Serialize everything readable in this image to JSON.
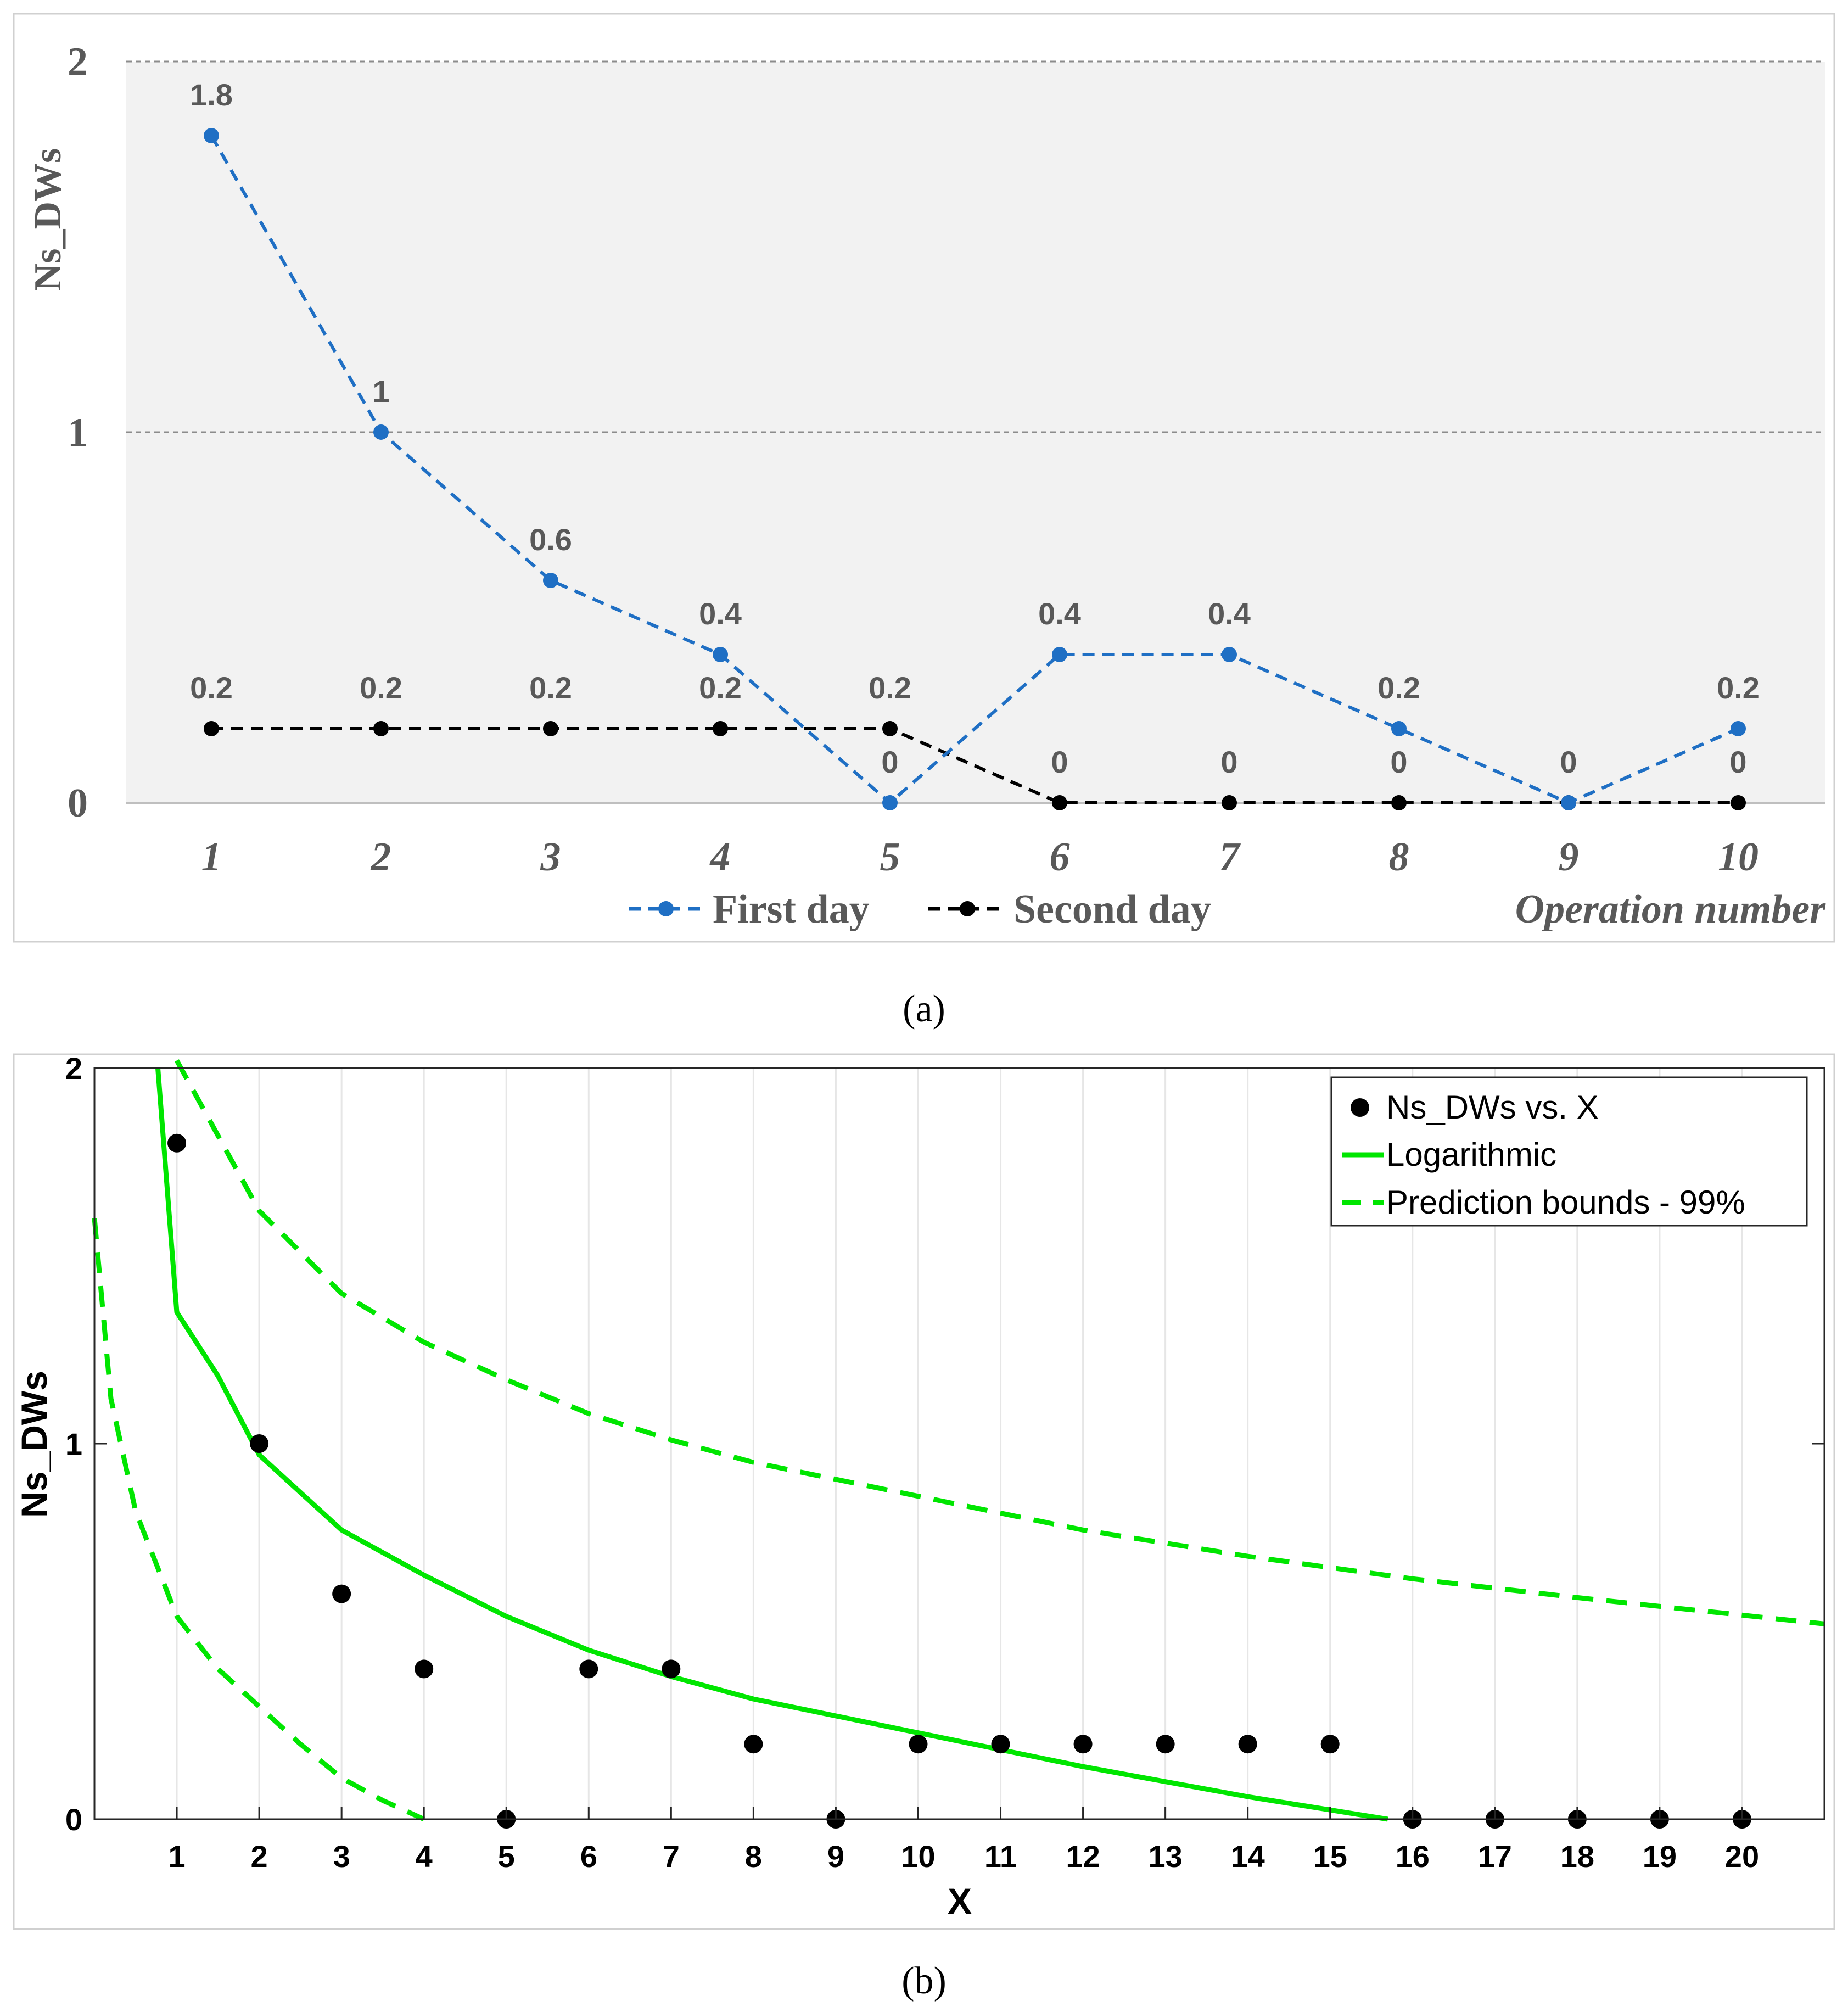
{
  "panel_labels": {
    "a": "(a)",
    "b": "(b)"
  },
  "colors": {
    "first_day": "#1f6fc4",
    "second_day": "#000000",
    "fit": "#00e600",
    "panel_a_background": "#f2f2f2",
    "label_gray": "#595959"
  },
  "chart_data": [
    {
      "type": "line",
      "panel": "a",
      "categories": [
        "1",
        "2",
        "3",
        "4",
        "5",
        "6",
        "7",
        "8",
        "9",
        "10"
      ],
      "x": [
        1,
        2,
        3,
        4,
        5,
        6,
        7,
        8,
        9,
        10
      ],
      "series": [
        {
          "name": "First day",
          "values": [
            1.8,
            1,
            0.6,
            0.4,
            0,
            0.4,
            0.4,
            0.2,
            0,
            0.2
          ],
          "labels": [
            "1.8",
            "1",
            "0.6",
            "0.4",
            "0",
            "0.4",
            "0.4",
            "0.2",
            "0",
            "0.2"
          ],
          "line_style": "dashed",
          "marker": "circle",
          "color": "#1f6fc4"
        },
        {
          "name": "Second day",
          "values": [
            0.2,
            0.2,
            0.2,
            0.2,
            0.2,
            0,
            0,
            0,
            0,
            0
          ],
          "labels": [
            "0.2",
            "0.2",
            "0.2",
            "0.2",
            "0.2",
            "0",
            "0",
            "0",
            "0",
            "0"
          ],
          "line_style": "dashed",
          "marker": "circle",
          "color": "#000000"
        }
      ],
      "data_labels": [
        {
          "x": 1,
          "y": 1.8,
          "text": "1.8"
        },
        {
          "x": 2,
          "y": 1,
          "text": "1"
        },
        {
          "x": 3,
          "y": 0.6,
          "text": "0.6"
        },
        {
          "x": 4,
          "y": 0.4,
          "text": "0.4"
        },
        {
          "x": 6,
          "y": 0.4,
          "text": "0.4"
        },
        {
          "x": 7,
          "y": 0.4,
          "text": "0.4"
        },
        {
          "x": 1,
          "y": 0.2,
          "text": "0.2"
        },
        {
          "x": 2,
          "y": 0.2,
          "text": "0.2"
        },
        {
          "x": 3,
          "y": 0.2,
          "text": "0.2"
        },
        {
          "x": 4,
          "y": 0.2,
          "text": "0.2"
        },
        {
          "x": 5,
          "y": 0.2,
          "text": "0.2"
        },
        {
          "x": 8,
          "y": 0.2,
          "text": "0.2"
        },
        {
          "x": 10,
          "y": 0.2,
          "text": "0.2"
        },
        {
          "x": 5,
          "y": 0,
          "text": "0"
        },
        {
          "x": 6,
          "y": 0,
          "text": "0"
        },
        {
          "x": 7,
          "y": 0,
          "text": "0"
        },
        {
          "x": 8,
          "y": 0,
          "text": "0"
        },
        {
          "x": 9,
          "y": 0,
          "text": "0"
        },
        {
          "x": 10,
          "y": 0,
          "text": "0"
        }
      ],
      "title": "",
      "xlabel": "Operation number",
      "ylabel": "Ns_DWs",
      "ylim": [
        0,
        2
      ],
      "yticks": [
        0,
        1,
        2
      ],
      "grid": "horizontal dashed",
      "legend": [
        "First day",
        "Second day"
      ],
      "legend_position": "bottom"
    },
    {
      "type": "scatter",
      "panel": "b",
      "x": [
        1,
        2,
        3,
        4,
        5,
        6,
        7,
        8,
        9,
        10,
        11,
        12,
        13,
        14,
        15,
        16,
        17,
        18,
        19,
        20
      ],
      "y": [
        1.8,
        1,
        0.6,
        0.4,
        0,
        0.4,
        0.4,
        0.2,
        0,
        0.2,
        0.2,
        0.2,
        0.2,
        0.2,
        0.2,
        0,
        0,
        0,
        0,
        0
      ],
      "xticks": [
        1,
        2,
        3,
        4,
        5,
        6,
        7,
        8,
        9,
        10,
        11,
        12,
        13,
        14,
        15,
        16,
        17,
        18,
        19,
        20
      ],
      "yticks": [
        0,
        1,
        2
      ],
      "xlim": [
        0,
        21
      ],
      "ylim": [
        0,
        2
      ],
      "curves": [
        {
          "name": "Logarithmic",
          "style": "solid",
          "color": "#00e600",
          "x": [
            0.77,
            1,
            1.5,
            2,
            3,
            4,
            5,
            6,
            7,
            8,
            10,
            12,
            14,
            15.7
          ],
          "y": [
            2,
            1.35,
            1.18,
            0.97,
            0.77,
            0.65,
            0.54,
            0.45,
            0.38,
            0.32,
            0.23,
            0.14,
            0.06,
            0
          ]
        },
        {
          "name": "Prediction bounds - 99%",
          "style": "dashed",
          "color": "#00e600",
          "x": [
            1,
            2,
            3,
            4,
            5,
            6,
            7,
            8,
            10,
            12,
            14,
            16,
            18,
            21
          ],
          "y": [
            2.02,
            1.62,
            1.4,
            1.27,
            1.17,
            1.08,
            1.01,
            0.95,
            0.86,
            0.77,
            0.7,
            0.64,
            0.59,
            0.52
          ]
        },
        {
          "name": "Prediction bounds - 99%",
          "style": "dashed",
          "color": "#00e600",
          "x": [
            0,
            0.2,
            0.5,
            1,
            1.5,
            2,
            2.5,
            3,
            3.5,
            4
          ],
          "y": [
            1.6,
            1.12,
            0.82,
            0.54,
            0.4,
            0.3,
            0.2,
            0.11,
            0.05,
            0
          ]
        }
      ],
      "title": "",
      "xlabel": "X",
      "ylabel": "Ns_DWs",
      "grid": "vertical",
      "legend": [
        "Ns_DWs vs. X",
        "Logarithmic",
        "Prediction bounds - 99%"
      ],
      "legend_position": "top-right"
    }
  ]
}
